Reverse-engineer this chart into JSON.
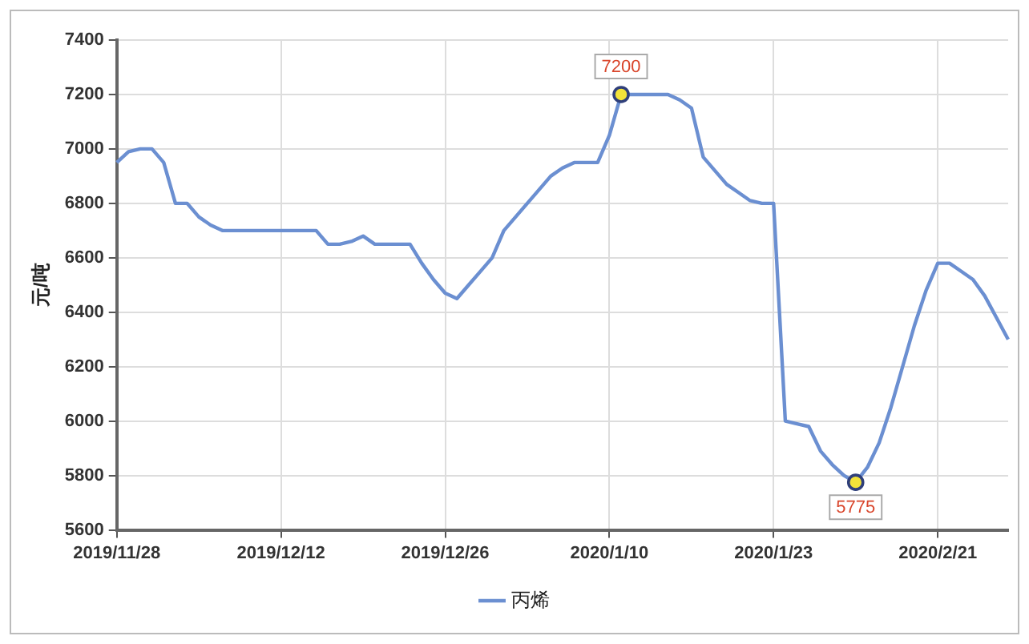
{
  "chart_data": {
    "type": "line",
    "ylabel": "元/吨",
    "categories": [
      "2019/11/28",
      null,
      null,
      null,
      null,
      null,
      null,
      null,
      null,
      null,
      null,
      null,
      null,
      null,
      "2019/12/12",
      null,
      null,
      null,
      null,
      null,
      null,
      null,
      null,
      null,
      null,
      null,
      null,
      null,
      "2019/12/26",
      null,
      null,
      null,
      null,
      null,
      null,
      null,
      null,
      null,
      null,
      null,
      null,
      null,
      "2020/1/10",
      null,
      null,
      null,
      null,
      null,
      null,
      null,
      null,
      null,
      null,
      null,
      null,
      null,
      "2020/1/23",
      null,
      null,
      null,
      null,
      null,
      null,
      null,
      null,
      null,
      null,
      null,
      null,
      null,
      "2020/2/21",
      null,
      null,
      null,
      null,
      null,
      null
    ],
    "series": [
      {
        "name": "丙烯",
        "color": "#6b8fd1",
        "values": [
          6950,
          6990,
          7000,
          7000,
          6950,
          6800,
          6800,
          6750,
          6720,
          6700,
          6700,
          6700,
          6700,
          6700,
          6700,
          6700,
          6700,
          6700,
          6650,
          6650,
          6660,
          6680,
          6650,
          6650,
          6650,
          6650,
          6580,
          6520,
          6470,
          6450,
          6500,
          6550,
          6600,
          6700,
          6750,
          6800,
          6850,
          6900,
          6930,
          6950,
          6950,
          6950,
          7050,
          7200,
          7200,
          7200,
          7200,
          7200,
          7180,
          7150,
          6970,
          6920,
          6870,
          6840,
          6810,
          6800,
          6800,
          6000,
          5990,
          5980,
          5890,
          5840,
          5800,
          5775,
          5830,
          5920,
          6050,
          6200,
          6350,
          6480,
          6580,
          6580,
          6550,
          6520,
          6460,
          6380,
          6300
        ],
        "value_labels": [
          null,
          null,
          null,
          null,
          null,
          null,
          null,
          null,
          null,
          null,
          null,
          null,
          null,
          null,
          null,
          null,
          null,
          null,
          null,
          null,
          null,
          null,
          null,
          null,
          null,
          null,
          null,
          null,
          null,
          null,
          null,
          null,
          null,
          null,
          null,
          null,
          null,
          null,
          null,
          null,
          null,
          null,
          null,
          "7200",
          null,
          null,
          null,
          null,
          null,
          null,
          null,
          null,
          null,
          null,
          null,
          null,
          null,
          null,
          null,
          null,
          null,
          null,
          null,
          "5775",
          null,
          null,
          null,
          null,
          null,
          null,
          null,
          null,
          null,
          null,
          null,
          null,
          null
        ]
      }
    ],
    "ylim": [
      5600,
      7400
    ],
    "yticks": [
      5600,
      5800,
      6000,
      6200,
      6400,
      6600,
      6800,
      7000,
      7200,
      7400
    ],
    "grid": true,
    "legend": "bottom",
    "marker": "none",
    "line_style": "solid"
  }
}
